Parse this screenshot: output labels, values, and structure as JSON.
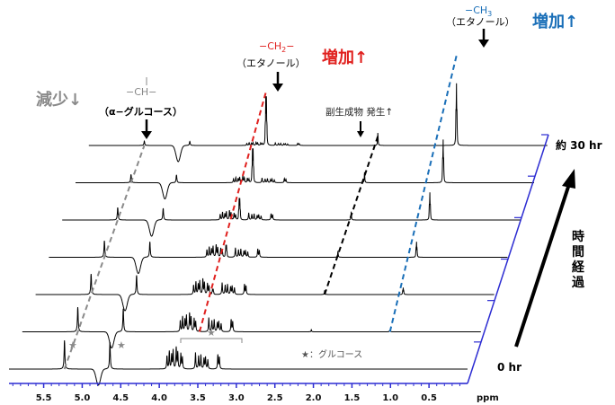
{
  "chart_data": {
    "type": "stacked-spectra",
    "xlabel": "ppm",
    "xlim": [
      5.95,
      0.0
    ],
    "x_ticks": [
      "5.5",
      "5.0",
      "4.5",
      "4.0",
      "3.5",
      "3.0",
      "2.5",
      "2.0",
      "1.5",
      "1.0",
      "0.5"
    ],
    "x_tick_values": [
      5.5,
      5.0,
      4.5,
      4.0,
      3.5,
      3.0,
      2.5,
      2.0,
      1.5,
      1.0,
      0.5
    ],
    "time_axis": {
      "start_label": "0 hr",
      "end_label": "約 30 hr",
      "arrow_label": "時間経過"
    },
    "peaks": {
      "glucose_anomeric_alpha": 5.23,
      "glucose_anomeric_beta": 4.64,
      "glucose_region": [
        3.2,
        3.9
      ],
      "water": 4.79,
      "ethanol_ch2": 3.65,
      "ethanol_ch3": 1.18,
      "byproduct": 2.2
    },
    "spectra_count": 7,
    "annotations": {
      "ch": {
        "formula": "−CH−",
        "name": "（α−グルコース）",
        "trend": "減少↓"
      },
      "ch2": {
        "formula_prefix": "−CH",
        "formula_sub": "2",
        "formula_suffix": "−",
        "name": "（エタノール）",
        "trend": "増加↑"
      },
      "ch3": {
        "formula_prefix": "−CH",
        "formula_sub": "3",
        "name": "（エタノール）",
        "trend": "増加↑"
      },
      "byproduct": {
        "text": "副生成物  発生↑"
      },
      "glucose_legend": "★：グルコース",
      "star_glyph": "★"
    },
    "colors": {
      "decrease": "#8a8a8a",
      "ch2_trend": "#e0201e",
      "ch3_trend": "#1a6fb8",
      "byproduct_trend": "#000000",
      "axis": "#2c2cd2"
    }
  }
}
